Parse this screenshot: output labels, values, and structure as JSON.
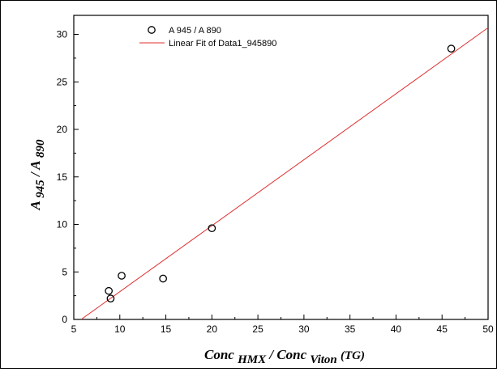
{
  "chart_data": {
    "type": "scatter",
    "xlim": [
      5,
      50
    ],
    "ylim": [
      0,
      32
    ],
    "x_ticks": [
      5,
      10,
      15,
      20,
      25,
      30,
      35,
      40,
      45,
      50
    ],
    "y_ticks": [
      0,
      5,
      10,
      15,
      20,
      25,
      30
    ],
    "x_tick_labels": [
      "5",
      "10",
      "15",
      "20",
      "25",
      "30",
      "35",
      "40",
      "45",
      "50"
    ],
    "y_tick_labels": [
      "0",
      "5",
      "10",
      "15",
      "20",
      "25",
      "30"
    ],
    "xlabel": {
      "main1": "Conc",
      "sub1": "HMX",
      "main2": "/ Conc",
      "sub2": "Viton",
      "tail": "(TG)"
    },
    "ylabel": {
      "main1": "A",
      "sub1": "945",
      "main2": "/ A",
      "sub2": "890"
    },
    "series": [
      {
        "name": "A 945 / A 890",
        "kind": "scatter",
        "marker": "open-circle",
        "color": "#000000",
        "x": [
          8.8,
          9.0,
          10.2,
          14.7,
          20.0,
          46.0
        ],
        "y": [
          3.0,
          2.2,
          4.6,
          4.3,
          9.6,
          28.5
        ]
      },
      {
        "name": "Linear Fit of Data1_945890",
        "kind": "line",
        "color": "#e03030",
        "x": [
          5.8,
          50.0
        ],
        "y": [
          0.0,
          30.7
        ]
      }
    ],
    "legend_position": "top-left",
    "grid": false
  }
}
